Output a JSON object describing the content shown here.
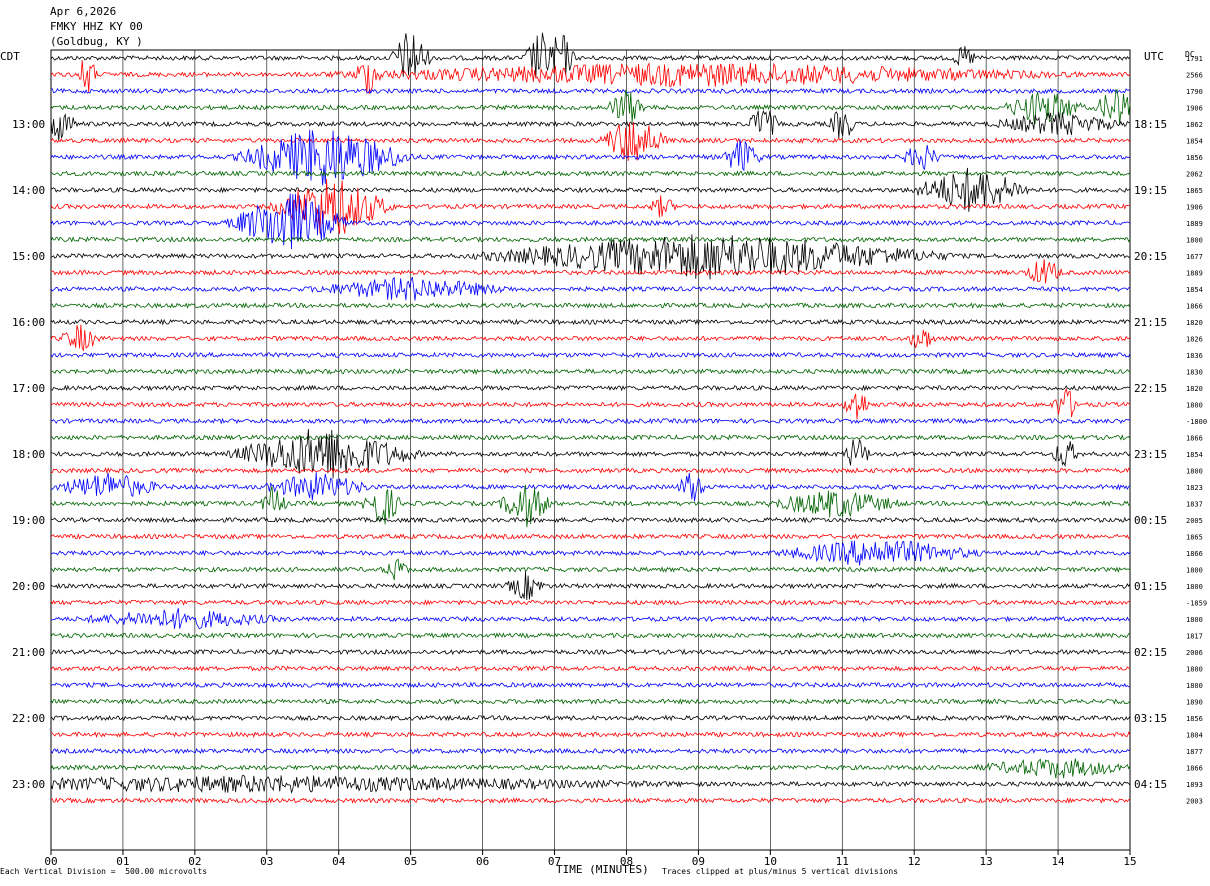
{
  "header": {
    "date": "Apr 6,2026",
    "station": "FMKY HHZ KY 00",
    "location": "(Goldbug, KY )"
  },
  "labels": {
    "left_tz": "CDT",
    "right_tz": "UTC",
    "dc": "DC"
  },
  "footer": {
    "scale_note": "Each Vertical Division =  500.00 microvolts",
    "xlabel": "TIME (MINUTES)",
    "clip_note": "Traces clipped at plus/minus 5 vertical divisions"
  },
  "colors": {
    "trace_cycle": [
      "#000000",
      "#ff0000",
      "#0000ff",
      "#006400"
    ],
    "grid": "#000000",
    "background": "#ffffff"
  },
  "chart_data": {
    "type": "helicorder",
    "x_ticks": [
      "00",
      "01",
      "02",
      "03",
      "04",
      "05",
      "06",
      "07",
      "08",
      "09",
      "10",
      "11",
      "12",
      "13",
      "14",
      "15"
    ],
    "xlim": [
      0,
      15
    ],
    "minutes_per_line": 15,
    "left_time_labels": [
      "13:00",
      "14:00",
      "15:00",
      "16:00",
      "17:00",
      "18:00",
      "19:00",
      "20:00",
      "21:00",
      "22:00",
      "23:00"
    ],
    "right_time_labels": [
      "18:15",
      "19:15",
      "20:15",
      "21:15",
      "22:15",
      "23:15",
      "00:15",
      "01:15",
      "02:15",
      "03:15",
      "04:15"
    ],
    "dc_offsets": [
      "1791",
      "2566",
      "1790",
      "1906",
      "1862",
      "1854",
      "1856",
      "2062",
      "1865",
      "1906",
      "1889",
      "1800",
      "1677",
      "1889",
      "1854",
      "1866",
      "1820",
      "1826",
      "1836",
      "1830",
      "1820",
      "1800",
      "-1800",
      "1866",
      "1854",
      "1800",
      "1823",
      "1837",
      "2005",
      "1865",
      "1866",
      "1800",
      "1800",
      "-1859",
      "1800",
      "1817",
      "2006",
      "1800",
      "1800",
      "1890",
      "1856",
      "1804",
      "1877",
      "1866",
      "1893",
      "2003"
    ],
    "traces": 46,
    "events": [
      {
        "line": 0,
        "minute": 5.0,
        "amplitude": 3.5,
        "duration": 0.3
      },
      {
        "line": 0,
        "minute": 6.8,
        "amplitude": 3.0,
        "duration": 0.25
      },
      {
        "line": 0,
        "minute": 7.1,
        "amplitude": 3.0,
        "duration": 0.2
      },
      {
        "line": 0,
        "minute": 12.7,
        "amplitude": 1.2,
        "duration": 0.2
      },
      {
        "line": 1,
        "minute": 0.5,
        "amplitude": 2.5,
        "duration": 0.15
      },
      {
        "line": 1,
        "minute": 4.4,
        "amplitude": 2.0,
        "duration": 0.2
      },
      {
        "line": 1,
        "minute": 9.0,
        "amplitude": 1.2,
        "duration": 5.5
      },
      {
        "line": 3,
        "minute": 8.0,
        "amplitude": 2.0,
        "duration": 0.3
      },
      {
        "line": 3,
        "minute": 13.8,
        "amplitude": 2.0,
        "duration": 0.6
      },
      {
        "line": 3,
        "minute": 14.8,
        "amplitude": 2.5,
        "duration": 0.3
      },
      {
        "line": 4,
        "minute": 0.1,
        "amplitude": 1.8,
        "duration": 0.3
      },
      {
        "line": 4,
        "minute": 9.9,
        "amplitude": 2.0,
        "duration": 0.25
      },
      {
        "line": 4,
        "minute": 11.0,
        "amplitude": 2.0,
        "duration": 0.2
      },
      {
        "line": 4,
        "minute": 14.0,
        "amplitude": 1.2,
        "duration": 1.0
      },
      {
        "line": 5,
        "minute": 8.1,
        "amplitude": 2.8,
        "duration": 0.5
      },
      {
        "line": 6,
        "minute": 3.8,
        "amplitude": 3.5,
        "duration": 1.3
      },
      {
        "line": 6,
        "minute": 9.6,
        "amplitude": 2.0,
        "duration": 0.3
      },
      {
        "line": 6,
        "minute": 12.1,
        "amplitude": 1.5,
        "duration": 0.3
      },
      {
        "line": 8,
        "minute": 12.8,
        "amplitude": 2.5,
        "duration": 0.9
      },
      {
        "line": 9,
        "minute": 3.9,
        "amplitude": 3.5,
        "duration": 0.9
      },
      {
        "line": 9,
        "minute": 8.5,
        "amplitude": 1.2,
        "duration": 0.2
      },
      {
        "line": 10,
        "minute": 3.3,
        "amplitude": 3.5,
        "duration": 0.9
      },
      {
        "line": 12,
        "minute": 9.2,
        "amplitude": 2.5,
        "duration": 3.5
      },
      {
        "line": 13,
        "minute": 13.8,
        "amplitude": 1.5,
        "duration": 0.3
      },
      {
        "line": 14,
        "minute": 5.0,
        "amplitude": 1.2,
        "duration": 1.5
      },
      {
        "line": 17,
        "minute": 0.4,
        "amplitude": 1.5,
        "duration": 0.3
      },
      {
        "line": 17,
        "minute": 12.1,
        "amplitude": 1.5,
        "duration": 0.2
      },
      {
        "line": 21,
        "minute": 11.2,
        "amplitude": 2.0,
        "duration": 0.2
      },
      {
        "line": 21,
        "minute": 14.1,
        "amplitude": 2.0,
        "duration": 0.2
      },
      {
        "line": 24,
        "minute": 3.8,
        "amplitude": 3.0,
        "duration": 1.4
      },
      {
        "line": 24,
        "minute": 11.2,
        "amplitude": 2.0,
        "duration": 0.2
      },
      {
        "line": 24,
        "minute": 14.1,
        "amplitude": 1.8,
        "duration": 0.2
      },
      {
        "line": 26,
        "minute": 0.8,
        "amplitude": 1.5,
        "duration": 0.8
      },
      {
        "line": 26,
        "minute": 3.7,
        "amplitude": 1.5,
        "duration": 0.8
      },
      {
        "line": 26,
        "minute": 8.9,
        "amplitude": 2.0,
        "duration": 0.2
      },
      {
        "line": 27,
        "minute": 3.1,
        "amplitude": 2.0,
        "duration": 0.2
      },
      {
        "line": 27,
        "minute": 4.6,
        "amplitude": 2.5,
        "duration": 0.3
      },
      {
        "line": 27,
        "minute": 6.6,
        "amplitude": 2.5,
        "duration": 0.4
      },
      {
        "line": 27,
        "minute": 10.9,
        "amplitude": 1.5,
        "duration": 1.0
      },
      {
        "line": 30,
        "minute": 11.5,
        "amplitude": 1.5,
        "duration": 1.5
      },
      {
        "line": 31,
        "minute": 4.8,
        "amplitude": 1.2,
        "duration": 0.2
      },
      {
        "line": 32,
        "minute": 6.6,
        "amplitude": 1.5,
        "duration": 0.3
      },
      {
        "line": 34,
        "minute": 1.8,
        "amplitude": 1.0,
        "duration": 1.5
      },
      {
        "line": 44,
        "minute": 3.0,
        "amplitude": 0.8,
        "duration": 6.0
      },
      {
        "line": 43,
        "minute": 14.0,
        "amplitude": 1.0,
        "duration": 1.2
      }
    ]
  }
}
